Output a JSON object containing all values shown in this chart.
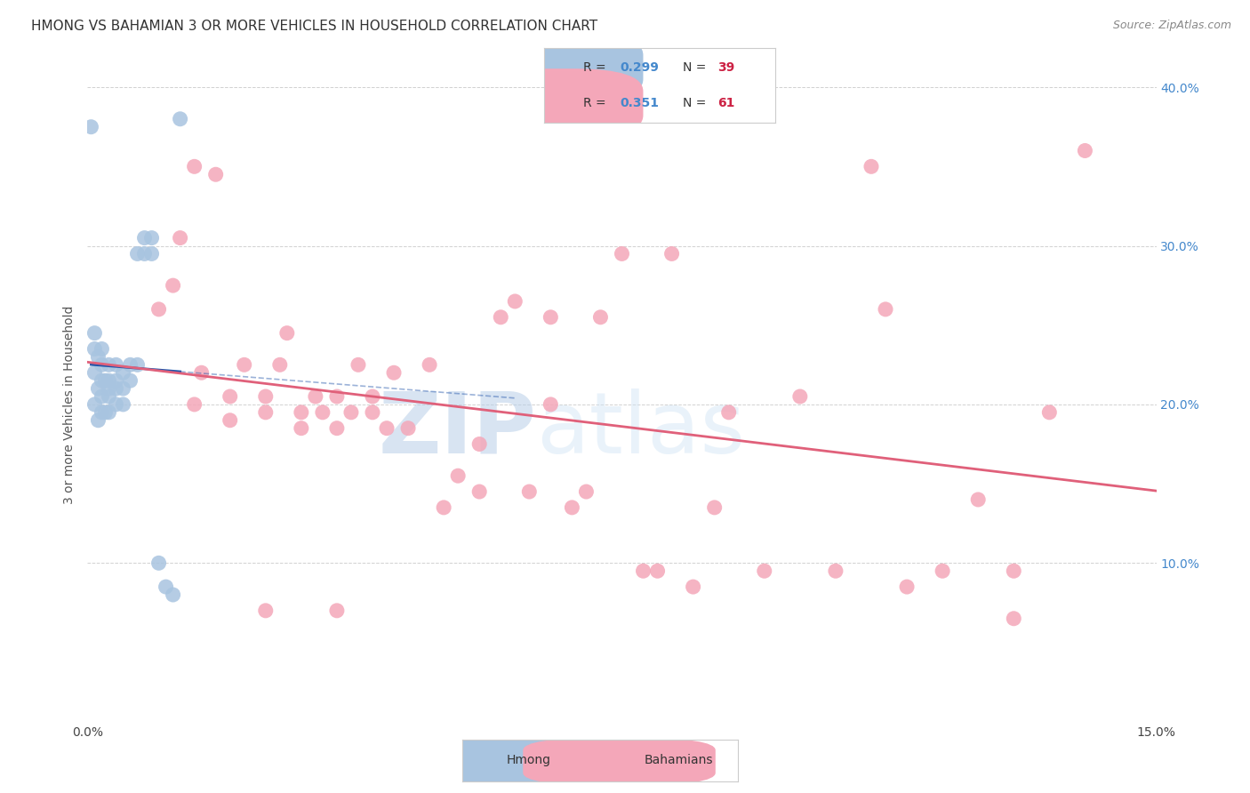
{
  "title": "HMONG VS BAHAMIAN 3 OR MORE VEHICLES IN HOUSEHOLD CORRELATION CHART",
  "source": "Source: ZipAtlas.com",
  "ylabel": "3 or more Vehicles in Household",
  "xlim": [
    0.0,
    0.15
  ],
  "ylim": [
    0.0,
    0.4
  ],
  "xtick_positions": [
    0.0,
    0.03,
    0.06,
    0.09,
    0.12,
    0.15
  ],
  "xtick_labels": [
    "0.0%",
    "",
    "",
    "",
    "",
    "15.0%"
  ],
  "ytick_positions": [
    0.0,
    0.1,
    0.2,
    0.3,
    0.4
  ],
  "ytick_labels_right": [
    "",
    "10.0%",
    "20.0%",
    "30.0%",
    "40.0%"
  ],
  "hmong_R": 0.299,
  "hmong_N": 39,
  "bahamian_R": 0.351,
  "bahamian_N": 61,
  "hmong_color": "#a8c4e0",
  "bahamian_color": "#f4a7b9",
  "hmong_line_color": "#2255aa",
  "bahamian_line_color": "#e0607a",
  "watermark_zip": "ZIP",
  "watermark_atlas": "atlas",
  "title_fontsize": 11,
  "axis_label_fontsize": 10,
  "tick_fontsize": 10,
  "hmong_x": [
    0.001,
    0.001,
    0.001,
    0.001,
    0.0015,
    0.0015,
    0.0015,
    0.002,
    0.002,
    0.002,
    0.002,
    0.002,
    0.0025,
    0.0025,
    0.003,
    0.003,
    0.003,
    0.003,
    0.003,
    0.004,
    0.004,
    0.004,
    0.004,
    0.005,
    0.005,
    0.005,
    0.006,
    0.006,
    0.007,
    0.007,
    0.008,
    0.008,
    0.009,
    0.009,
    0.01,
    0.011,
    0.012,
    0.013,
    0.0005
  ],
  "hmong_y": [
    0.2,
    0.22,
    0.235,
    0.245,
    0.19,
    0.21,
    0.23,
    0.195,
    0.205,
    0.215,
    0.225,
    0.235,
    0.195,
    0.215,
    0.195,
    0.205,
    0.21,
    0.215,
    0.225,
    0.2,
    0.21,
    0.215,
    0.225,
    0.2,
    0.21,
    0.22,
    0.215,
    0.225,
    0.225,
    0.295,
    0.295,
    0.305,
    0.295,
    0.305,
    0.1,
    0.085,
    0.08,
    0.38,
    0.375
  ],
  "bahamian_x": [
    0.01,
    0.012,
    0.013,
    0.015,
    0.015,
    0.016,
    0.018,
    0.02,
    0.02,
    0.022,
    0.025,
    0.025,
    0.027,
    0.028,
    0.03,
    0.03,
    0.032,
    0.033,
    0.035,
    0.035,
    0.037,
    0.038,
    0.04,
    0.04,
    0.042,
    0.043,
    0.045,
    0.048,
    0.05,
    0.052,
    0.055,
    0.055,
    0.058,
    0.06,
    0.062,
    0.065,
    0.068,
    0.07,
    0.072,
    0.075,
    0.078,
    0.08,
    0.082,
    0.085,
    0.088,
    0.09,
    0.095,
    0.1,
    0.105,
    0.11,
    0.112,
    0.115,
    0.12,
    0.125,
    0.13,
    0.135,
    0.14,
    0.025,
    0.035,
    0.065,
    0.13
  ],
  "bahamian_y": [
    0.26,
    0.275,
    0.305,
    0.35,
    0.2,
    0.22,
    0.345,
    0.19,
    0.205,
    0.225,
    0.195,
    0.205,
    0.225,
    0.245,
    0.185,
    0.195,
    0.205,
    0.195,
    0.185,
    0.205,
    0.195,
    0.225,
    0.195,
    0.205,
    0.185,
    0.22,
    0.185,
    0.225,
    0.135,
    0.155,
    0.145,
    0.175,
    0.255,
    0.265,
    0.145,
    0.255,
    0.135,
    0.145,
    0.255,
    0.295,
    0.095,
    0.095,
    0.295,
    0.085,
    0.135,
    0.195,
    0.095,
    0.205,
    0.095,
    0.35,
    0.26,
    0.085,
    0.095,
    0.14,
    0.095,
    0.195,
    0.36,
    0.07,
    0.07,
    0.2,
    0.065
  ]
}
